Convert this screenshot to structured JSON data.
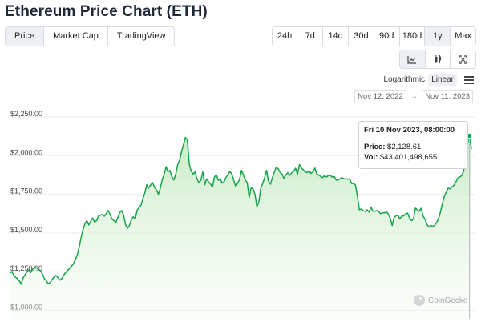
{
  "title": "Ethereum Price Chart (ETH)",
  "tabs": [
    {
      "label": "Price",
      "active": true
    },
    {
      "label": "Market Cap",
      "active": false
    },
    {
      "label": "TradingView",
      "active": false
    }
  ],
  "ranges": [
    {
      "label": "24h",
      "active": false
    },
    {
      "label": "7d",
      "active": false
    },
    {
      "label": "14d",
      "active": false
    },
    {
      "label": "30d",
      "active": false
    },
    {
      "label": "90d",
      "active": false
    },
    {
      "label": "180d",
      "active": false
    },
    {
      "label": "1y",
      "active": true
    },
    {
      "label": "Max",
      "active": false
    }
  ],
  "chart_types": [
    {
      "icon": "line-chart-icon",
      "active": true
    },
    {
      "icon": "candlestick-icon",
      "active": false
    },
    {
      "icon": "expand-icon",
      "active": false
    }
  ],
  "scale": {
    "log_label": "Logarithmic",
    "linear_label": "Linear",
    "active": "Linear"
  },
  "date_range": {
    "from": "Nov 12, 2022",
    "arrow": "→",
    "to": "Nov 11, 2023"
  },
  "tooltip": {
    "date": "Fri 10 Nov 2023, 08:00:00",
    "price_label": "Price:",
    "price_value": "$2,128.61",
    "vol_label": "Vol:",
    "vol_value": "$43,401,498,655"
  },
  "watermark": "CoinGecko",
  "colors": {
    "line": "#16a34a",
    "fill": "#dff5dc",
    "accent": "#2e9e4a"
  },
  "chart_data": {
    "type": "area",
    "title": "",
    "xlabel": "",
    "ylabel": "",
    "x_range": [
      "Nov 12, 2022",
      "Nov 11, 2023"
    ],
    "ylim": [
      980,
      2290
    ],
    "yticks": [
      {
        "value": 1000,
        "label": "$1,000.00"
      },
      {
        "value": 1250,
        "label": "$1,250.00"
      },
      {
        "value": 1500,
        "label": "$1,500.00"
      },
      {
        "value": 1750,
        "label": "$1,750.00"
      },
      {
        "value": 2000,
        "label": "$2,000.00"
      },
      {
        "value": 2250,
        "label": "$2,250.00"
      }
    ],
    "grid": true,
    "series": [
      {
        "values": [
          1240,
          1250,
          1232,
          1215,
          1205,
          1190,
          1170,
          1210,
          1230,
          1250,
          1262,
          1245,
          1268,
          1280,
          1275,
          1262,
          1255,
          1235,
          1205,
          1190,
          1172,
          1180,
          1200,
          1215,
          1225,
          1212,
          1195,
          1205,
          1228,
          1245,
          1258,
          1270,
          1285,
          1300,
          1328,
          1358,
          1410,
          1470,
          1520,
          1560,
          1580,
          1552,
          1575,
          1598,
          1570,
          1580,
          1610,
          1615,
          1620,
          1608,
          1625,
          1645,
          1620,
          1590,
          1580,
          1570,
          1600,
          1632,
          1645,
          1615,
          1555,
          1530,
          1548,
          1585,
          1605,
          1590,
          1648,
          1665,
          1680,
          1720,
          1760,
          1812,
          1790,
          1810,
          1825,
          1795,
          1778,
          1750,
          1790,
          1845,
          1880,
          1928,
          1895,
          1905,
          1865,
          1842,
          1882,
          1942,
          1972,
          2028,
          2072,
          2118,
          2100,
          1945,
          1900,
          1880,
          1895,
          1848,
          1825,
          1842,
          1895,
          1812,
          1850,
          1830,
          1815,
          1798,
          1862,
          1875,
          1840,
          1852,
          1822,
          1832,
          1860,
          1875,
          1900,
          1880,
          1840,
          1800,
          1822,
          1845,
          1905,
          1875,
          1842,
          1825,
          1730,
          1792,
          1785,
          1748,
          1668,
          1700,
          1790,
          1820,
          1858,
          1905,
          1835,
          1815,
          1858,
          1895,
          1925,
          1915,
          1892,
          1882,
          1852,
          1875,
          1890,
          1872,
          1890,
          1900,
          1918,
          1880,
          1942,
          1920,
          1910,
          1895,
          1890,
          1902,
          1885,
          1895,
          1920,
          1880,
          1875,
          1865,
          1858,
          1870,
          1862,
          1872,
          1872,
          1860,
          1865,
          1842,
          1842,
          1850,
          1858,
          1850,
          1850,
          1848,
          1850,
          1820,
          1820,
          1810,
          1738,
          1650,
          1655,
          1645,
          1640,
          1650,
          1635,
          1668,
          1642,
          1640,
          1645,
          1640,
          1625,
          1630,
          1630,
          1636,
          1622,
          1595,
          1548,
          1600,
          1610,
          1615,
          1590,
          1610,
          1610,
          1625,
          1628,
          1595,
          1580,
          1590,
          1660,
          1650,
          1640,
          1660,
          1610,
          1588,
          1555,
          1538,
          1548,
          1542,
          1550,
          1568,
          1592,
          1635,
          1690,
          1738,
          1765,
          1790,
          1785,
          1798,
          1810,
          1830,
          1855,
          1862,
          1870,
          1900,
          2000,
          2080,
          2128.61,
          2042
        ]
      }
    ]
  }
}
